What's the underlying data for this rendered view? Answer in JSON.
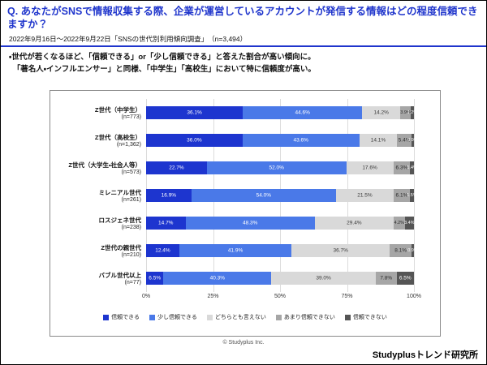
{
  "page": {
    "title": "Q. あなたがSNSで情報収集する際、企業が運営しているアカウントが発信する情報はどの程度信頼できますか？",
    "subtitle": "2022年9月16日～2022年9月22日「SNSの世代別利用傾向調査」　（n=3,494）",
    "bullet1": "・世代が若くなるほど、「信頼できる」or「少し信頼できる」と答えた割合が高い傾向に。",
    "bullet2": "　「著名人・インフルエンサー」と同様、「中学生」「高校生」において特に信頼度が高い。",
    "copyright": "© Studyplus Inc.",
    "brand": "Studyplusトレンド研究所",
    "accent_color": "#1f35cc"
  },
  "chart_data": {
    "type": "bar",
    "orientation": "horizontal-stacked",
    "title": "",
    "xlabel": "",
    "ylabel": "",
    "xlim": [
      0,
      100
    ],
    "x_ticks": [
      0,
      25,
      50,
      75,
      100
    ],
    "legend_position": "bottom",
    "grid": true,
    "categories": [
      "Z世代（中学生）",
      "Z世代（高校生）",
      "Z世代（大学生・社会人等）",
      "ミレニアル世代",
      "ロスジェネ世代",
      "Z世代の親世代",
      "バブル世代以上"
    ],
    "ns": [
      "(n=773)",
      "(n=1,362)",
      "(n=573)",
      "(n=261)",
      "(n=238)",
      "(n=210)",
      "(n=77)"
    ],
    "segments": [
      "信頼できる",
      "少し信頼できる",
      "どちらとも言えない",
      "あまり信頼できない",
      "信頼できない"
    ],
    "colors": [
      "#1d35cf",
      "#4a79e8",
      "#d9d9d9",
      "#a6a6a6",
      "#555555"
    ],
    "label_text_colors": [
      "#ffffff",
      "#ffffff",
      "#3a3a3a",
      "#2b2b2b",
      "#ffffff"
    ],
    "rows": [
      [
        36.1,
        44.6,
        14.2,
        3.9,
        1.2
      ],
      [
        36.0,
        43.6,
        14.1,
        5.4,
        0.9
      ],
      [
        22.7,
        52.0,
        17.6,
        6.3,
        1.4
      ],
      [
        16.9,
        54.0,
        21.5,
        6.1,
        1.5
      ],
      [
        14.7,
        48.3,
        29.4,
        4.2,
        3.4
      ],
      [
        12.4,
        41.9,
        36.7,
        8.1,
        0.9
      ],
      [
        6.5,
        40.3,
        39.0,
        7.8,
        6.5
      ]
    ]
  }
}
